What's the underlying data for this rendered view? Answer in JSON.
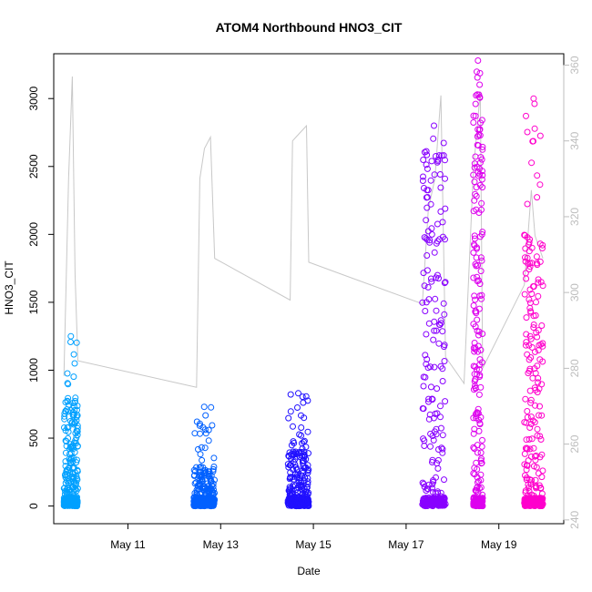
{
  "chart_data": {
    "type": "scatter",
    "title": "ATOM4 Northbound HNO3_CIT",
    "xlabel": "Date",
    "ylabel": "HNO3_CIT",
    "x_ticks": [
      {
        "label": "May 11",
        "day": 11
      },
      {
        "label": "May 13",
        "day": 13
      },
      {
        "label": "May 15",
        "day": 15
      },
      {
        "label": "May 17",
        "day": 17
      },
      {
        "label": "May 19",
        "day": 19
      }
    ],
    "xlim_days": [
      9.4,
      20.4
    ],
    "y_ticks": [
      0,
      500,
      1000,
      1500,
      2000,
      2500,
      3000
    ],
    "ylim": [
      -130,
      3330
    ],
    "y2_ticks": [
      240,
      260,
      280,
      300,
      320,
      340,
      360
    ],
    "y2lim": [
      239,
      363
    ],
    "grid": false,
    "series": [
      {
        "color": "#00a0ff",
        "clusters": [
          {
            "day_start": 9.62,
            "day_end": 9.92,
            "y_min": 0,
            "y_max": 1250,
            "dense_max": 800
          }
        ]
      },
      {
        "color": "#0060ff",
        "clusters": [
          {
            "day_start": 12.42,
            "day_end": 12.87,
            "y_min": 0,
            "y_max": 730,
            "dense_max": 300
          }
        ]
      },
      {
        "color": "#2010ff",
        "clusters": [
          {
            "day_start": 14.45,
            "day_end": 14.9,
            "y_min": 0,
            "y_max": 830,
            "dense_max": 400
          }
        ]
      },
      {
        "color": "#8800ff",
        "clusters": [
          {
            "day_start": 17.35,
            "day_end": 17.85,
            "y_min": 0,
            "y_max": 2800,
            "dense_max": 2700
          }
        ]
      },
      {
        "color": "#dd00ee",
        "clusters": [
          {
            "day_start": 18.45,
            "day_end": 18.65,
            "y_min": 0,
            "y_max": 3280,
            "dense_max": 3200
          }
        ]
      },
      {
        "color": "#ff00cc",
        "clusters": [
          {
            "day_start": 19.55,
            "day_end": 19.95,
            "y_min": 0,
            "y_max": 3000,
            "dense_max": 2000
          }
        ]
      }
    ],
    "secondary_line": {
      "color": "#c8c8c8",
      "points": [
        [
          9.62,
          278
        ],
        [
          9.72,
          330
        ],
        [
          9.8,
          357
        ],
        [
          9.86,
          305
        ],
        [
          9.92,
          282
        ],
        [
          12.48,
          275
        ],
        [
          12.55,
          330
        ],
        [
          12.65,
          338
        ],
        [
          12.78,
          341
        ],
        [
          12.87,
          309
        ],
        [
          14.5,
          298
        ],
        [
          14.55,
          340
        ],
        [
          14.7,
          342
        ],
        [
          14.85,
          344
        ],
        [
          14.9,
          308
        ],
        [
          17.35,
          297
        ],
        [
          17.48,
          322
        ],
        [
          17.62,
          330
        ],
        [
          17.75,
          352
        ],
        [
          17.85,
          283
        ],
        [
          18.25,
          276
        ],
        [
          18.45,
          332
        ],
        [
          18.6,
          353
        ],
        [
          18.65,
          280
        ],
        [
          19.55,
          302
        ],
        [
          19.7,
          327
        ],
        [
          19.78,
          315
        ],
        [
          19.95,
          309
        ]
      ]
    }
  }
}
